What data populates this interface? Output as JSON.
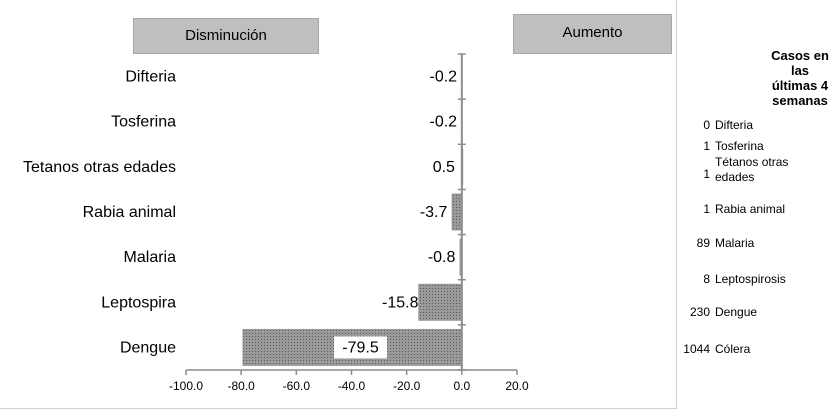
{
  "chart_data": {
    "type": "bar",
    "orientation": "horizontal",
    "categories": [
      "Difteria",
      "Tosferina",
      "Tetanos otras edades",
      "Rabia animal",
      "Malaria",
      "Leptospira",
      "Dengue"
    ],
    "values": [
      -0.2,
      -0.2,
      0.5,
      -3.7,
      -0.8,
      -15.8,
      -79.5
    ],
    "value_labels": [
      "-0.2",
      "-0.2",
      "0.5",
      "-3.7",
      "-0.8",
      "-15.8",
      "-79.5"
    ],
    "xlim": [
      -100,
      20
    ],
    "x_ticks": [
      -100,
      -80,
      -60,
      -40,
      -20,
      0,
      20
    ],
    "x_tick_labels": [
      "-100.0",
      "-80.0",
      "-60.0",
      "-40.0",
      "-20.0",
      "0.0",
      "20.0"
    ],
    "grid": false,
    "bar_color": "#8c8c8c",
    "axis_color": "#8c8c8c"
  },
  "headers": {
    "decrease_label": "Disminución",
    "increase_label": "Aumento"
  },
  "side_table": {
    "title_lines": [
      "Casos en las",
      "últimas 4",
      "semanas"
    ],
    "rows": [
      {
        "count": "0",
        "name_lines": [
          "Difteria"
        ]
      },
      {
        "count": "1",
        "name_lines": [
          "Tosferina"
        ]
      },
      {
        "count": "1",
        "name_lines": [
          "Tétanos otras",
          "edades"
        ]
      },
      {
        "count": "1",
        "name_lines": [
          "Rabia animal"
        ]
      },
      {
        "count": "89",
        "name_lines": [
          "Malaria"
        ]
      },
      {
        "count": "8",
        "name_lines": [
          "Leptospirosis"
        ]
      },
      {
        "count": "230",
        "name_lines": [
          "Dengue"
        ]
      },
      {
        "count": "1044",
        "name_lines": [
          "Cólera"
        ]
      }
    ]
  }
}
